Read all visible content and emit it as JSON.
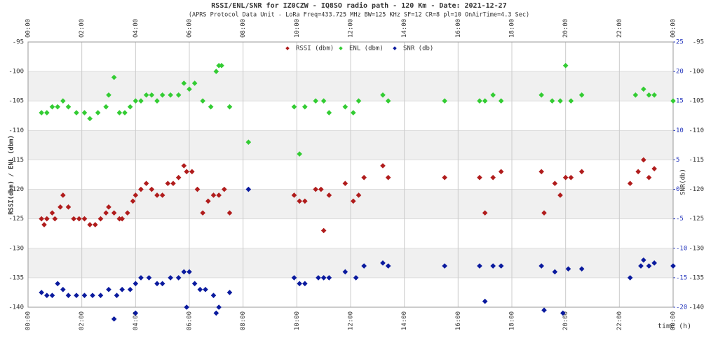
{
  "chart_data": {
    "type": "scatter",
    "title": "RSSI/ENL/SNR for IZ0CZW - IQ8SO radio path - 120 Km - Date: 2021-12-27",
    "subtitle": "(APRS Protocol Data Unit - LoRa Freq=433.725 MHz BW=125 KHz SF=12 CR=8 pl=10 OnAirTime=4.3 Sec)",
    "x_label": "time (h)",
    "y_label": "RSSI(dbm) / ENL (dbm)",
    "y2_label": "SNR(db)",
    "xlim": [
      0,
      24
    ],
    "xticks": [
      {
        "value": 0,
        "label": "00:00"
      },
      {
        "value": 2,
        "label": "02:00"
      },
      {
        "value": 4,
        "label": "04:00"
      },
      {
        "value": 6,
        "label": "06:00"
      },
      {
        "value": 8,
        "label": "08:00"
      },
      {
        "value": 10,
        "label": "10:00"
      },
      {
        "value": 12,
        "label": "12:00"
      },
      {
        "value": 14,
        "label": "14:00"
      },
      {
        "value": 16,
        "label": "16:00"
      },
      {
        "value": 18,
        "label": "18:00"
      },
      {
        "value": 20,
        "label": "20:00"
      },
      {
        "value": 22,
        "label": "22:00"
      },
      {
        "value": 24,
        "label": "00:00"
      }
    ],
    "ylim": [
      -140,
      -95
    ],
    "yticks": [
      -95,
      -100,
      -105,
      -110,
      -115,
      -120,
      -125,
      -130,
      -135,
      -140
    ],
    "y2lim": [
      -20,
      25
    ],
    "y2ticks": [
      25,
      20,
      15,
      10,
      5,
      0,
      -5,
      -10,
      -15,
      -20
    ],
    "grid": true,
    "series": [
      {
        "name": "RSSI (dbm)",
        "color": "#b01c1c",
        "x": [
          0.5,
          0.6,
          0.7,
          0.9,
          1.0,
          1.2,
          1.3,
          1.5,
          1.7,
          1.9,
          2.1,
          2.3,
          2.5,
          2.7,
          2.9,
          3.0,
          3.2,
          3.4,
          3.5,
          3.7,
          3.9,
          4.0,
          4.2,
          4.4,
          4.6,
          4.8,
          5.0,
          5.2,
          5.4,
          5.6,
          5.8,
          5.9,
          6.1,
          6.3,
          6.5,
          6.7,
          6.9,
          7.1,
          7.3,
          7.5,
          9.9,
          10.1,
          10.3,
          10.7,
          10.9,
          11.0,
          11.2,
          11.8,
          12.1,
          12.3,
          12.5,
          13.2,
          13.4,
          15.5,
          16.8,
          17.0,
          17.3,
          17.6,
          19.1,
          19.2,
          19.6,
          19.8,
          20.0,
          20.2,
          20.6,
          22.4,
          22.7,
          22.9,
          23.1,
          23.3
        ],
        "values": [
          -125,
          -126,
          -125,
          -124,
          -125,
          -123,
          -121,
          -123,
          -125,
          -125,
          -125,
          -126,
          -126,
          -125,
          -124,
          -123,
          -124,
          -125,
          -125,
          -124,
          -122,
          -121,
          -120,
          -119,
          -120,
          -121,
          -121,
          -119,
          -119,
          -118,
          -116,
          -117,
          -117,
          -120,
          -124,
          -122,
          -121,
          -121,
          -120,
          -124,
          -121,
          -122,
          -122,
          -120,
          -120,
          -127,
          -121,
          -119,
          -122,
          -121,
          -118,
          -116,
          -118,
          -118,
          -118,
          -124,
          -118,
          -117,
          -117,
          -124,
          -119,
          -121,
          -118,
          -118,
          -117,
          -119,
          -117,
          -115,
          -118,
          -116.5
        ]
      },
      {
        "name": "ENL (dbm)",
        "color": "#33cc33",
        "x": [
          0.5,
          0.7,
          0.9,
          1.1,
          1.3,
          1.5,
          1.8,
          2.1,
          2.3,
          2.6,
          2.9,
          3.0,
          3.2,
          3.4,
          3.6,
          3.8,
          4.0,
          4.2,
          4.4,
          4.6,
          4.8,
          5.0,
          5.3,
          5.6,
          5.8,
          6.0,
          6.2,
          6.5,
          6.8,
          7.0,
          7.1,
          7.2,
          7.5,
          8.2,
          9.9,
          10.1,
          10.3,
          10.7,
          11.0,
          11.2,
          11.8,
          12.1,
          12.3,
          13.2,
          13.4,
          15.5,
          16.8,
          17.0,
          17.3,
          17.6,
          19.1,
          19.5,
          19.8,
          20.0,
          20.2,
          20.6,
          22.6,
          22.9,
          23.1,
          23.3,
          24.0
        ],
        "values": [
          -107,
          -107,
          -106,
          -106,
          -105,
          -106,
          -107,
          -107,
          -108,
          -107,
          -106,
          -104,
          -101,
          -107,
          -107,
          -106,
          -105,
          -105,
          -104,
          -104,
          -105,
          -104,
          -104,
          -104,
          -102,
          -103,
          -102,
          -105,
          -106,
          -100,
          -99,
          -99,
          -106,
          -112,
          -106,
          -114,
          -106,
          -105,
          -105,
          -107,
          -106,
          -107,
          -105,
          -104,
          -105,
          -105,
          -105,
          -105,
          -104,
          -105,
          -104,
          -105,
          -105,
          -99,
          -105,
          -104,
          -104,
          -103,
          -104,
          -104,
          -105
        ]
      },
      {
        "name": "SNR (db)",
        "color": "#0a1a9e",
        "axis": "y2",
        "x": [
          0.5,
          0.7,
          0.9,
          1.1,
          1.3,
          1.5,
          1.8,
          2.1,
          2.4,
          2.7,
          3.0,
          3.3,
          3.5,
          3.8,
          4.0,
          4.2,
          4.5,
          4.8,
          5.0,
          5.3,
          5.6,
          5.8,
          6.0,
          6.2,
          6.4,
          6.6,
          6.9,
          7.1,
          7.5,
          3.2,
          4.0,
          5.9,
          7.0,
          8.2,
          9.9,
          10.1,
          10.3,
          10.8,
          11.0,
          11.2,
          11.8,
          12.2,
          12.5,
          13.2,
          13.4,
          15.5,
          16.8,
          17.0,
          17.3,
          17.6,
          19.1,
          19.2,
          19.6,
          19.9,
          20.1,
          20.6,
          22.4,
          22.8,
          22.9,
          23.1,
          23.3,
          24.0
        ],
        "values": [
          -17.5,
          -18,
          -18,
          -16,
          -17,
          -18,
          -18,
          -18,
          -18,
          -18,
          -17,
          -18,
          -17,
          -17,
          -16,
          -15,
          -15,
          -16,
          -16,
          -15,
          -15,
          -14,
          -14,
          -16,
          -17,
          -17,
          -18,
          -20,
          -17.5,
          -22,
          -21,
          -20,
          -21,
          0,
          -15,
          -16,
          -16,
          -15,
          -15,
          -15,
          -14,
          -15,
          -13,
          -12.5,
          -13,
          -13,
          -13,
          -19,
          -13,
          -13,
          -13,
          -20.5,
          -14,
          -21,
          -13.5,
          -13.5,
          -15,
          -13,
          -12,
          -13,
          -12.5,
          -13
        ]
      }
    ]
  }
}
